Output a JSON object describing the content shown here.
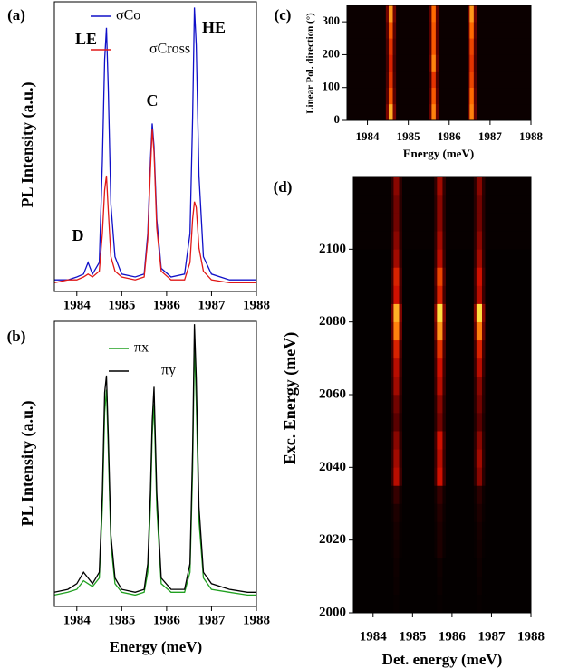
{
  "chart_data": [
    {
      "type": "line",
      "panel": "(a)",
      "ylabel": "PL Intensity (a.u.)",
      "annotations": [
        "LE",
        "C",
        "HE",
        "D"
      ],
      "x": [
        1983.5,
        1983.8,
        1984.0,
        1984.15,
        1984.25,
        1984.35,
        1984.5,
        1984.57,
        1984.62,
        1984.66,
        1984.7,
        1984.76,
        1984.85,
        1985.0,
        1985.3,
        1985.5,
        1985.58,
        1985.64,
        1985.68,
        1985.72,
        1985.78,
        1985.88,
        1986.1,
        1986.4,
        1986.52,
        1986.58,
        1986.62,
        1986.66,
        1986.72,
        1986.82,
        1987.0,
        1987.4,
        1987.8,
        1988.0
      ],
      "series": [
        {
          "name": "σCo",
          "color": "#1010c8",
          "values": [
            4,
            4,
            5,
            6,
            10,
            6,
            10,
            45,
            80,
            91,
            70,
            30,
            12,
            6,
            5,
            6,
            20,
            45,
            58,
            50,
            25,
            8,
            5,
            6,
            20,
            60,
            98,
            85,
            40,
            12,
            6,
            4,
            4,
            4
          ]
        },
        {
          "name": "σCross",
          "color": "#e01818",
          "values": [
            3,
            4,
            4,
            5,
            6,
            5,
            7,
            20,
            35,
            40,
            28,
            12,
            7,
            5,
            4,
            5,
            18,
            42,
            56,
            48,
            22,
            7,
            4,
            4,
            10,
            25,
            31,
            29,
            15,
            7,
            4,
            3,
            3,
            3
          ]
        }
      ],
      "xlim": [
        1983.5,
        1988
      ],
      "xticks": [
        1984,
        1985,
        1986,
        1987,
        1988
      ],
      "ylim": [
        0,
        100
      ]
    },
    {
      "type": "line",
      "panel": "(b)",
      "ylabel": "PL Intensity (a.u.)",
      "xlabel": "Energy (meV)",
      "x": [
        1983.5,
        1983.8,
        1984.0,
        1984.15,
        1984.25,
        1984.35,
        1984.5,
        1984.57,
        1984.62,
        1984.66,
        1984.7,
        1984.76,
        1984.85,
        1985.0,
        1985.3,
        1985.5,
        1985.58,
        1985.64,
        1985.68,
        1985.72,
        1985.78,
        1985.88,
        1986.1,
        1986.4,
        1986.52,
        1986.58,
        1986.62,
        1986.66,
        1986.72,
        1986.82,
        1987.0,
        1987.4,
        1987.8,
        1988.0
      ],
      "series": [
        {
          "name": "πx",
          "color": "#20a020",
          "values": [
            4,
            5,
            6,
            9,
            8,
            7,
            10,
            35,
            68,
            76,
            55,
            22,
            8,
            5,
            4,
            5,
            12,
            35,
            60,
            71,
            35,
            8,
            5,
            5,
            12,
            48,
            92,
            72,
            30,
            10,
            6,
            5,
            4,
            4
          ]
        },
        {
          "name": "πy",
          "color": "#000000",
          "values": [
            5,
            6,
            8,
            12,
            10,
            8,
            12,
            40,
            75,
            81,
            60,
            25,
            10,
            6,
            5,
            6,
            15,
            40,
            65,
            77,
            40,
            10,
            6,
            6,
            15,
            55,
            99,
            80,
            35,
            12,
            8,
            6,
            5,
            5
          ]
        }
      ],
      "xlim": [
        1983.5,
        1988
      ],
      "xticks": [
        1984,
        1985,
        1986,
        1987,
        1988
      ],
      "ylim": [
        0,
        100
      ]
    },
    {
      "type": "heatmap",
      "panel": "(c)",
      "ylabel": "Linear Pol. direction (°)",
      "xlabel": "Energy (meV)",
      "xbins": [
        1983.5,
        1984.45,
        1984.52,
        1984.62,
        1984.7,
        1985.5,
        1985.57,
        1985.67,
        1985.75,
        1986.45,
        1986.5,
        1986.6,
        1986.68,
        1988
      ],
      "ybins": [
        0,
        50,
        100,
        150,
        200,
        250,
        300,
        350
      ],
      "z": [
        [
          0.03,
          0.32,
          0.9,
          0.32,
          0.03,
          0.28,
          0.8,
          0.28,
          0.03,
          0.28,
          0.8,
          0.28,
          0.03
        ],
        [
          0.03,
          0.25,
          0.7,
          0.25,
          0.03,
          0.25,
          0.7,
          0.25,
          0.03,
          0.26,
          0.75,
          0.26,
          0.03
        ],
        [
          0.03,
          0.21,
          0.6,
          0.21,
          0.03,
          0.21,
          0.6,
          0.21,
          0.03,
          0.23,
          0.65,
          0.23,
          0.03
        ],
        [
          0.03,
          0.19,
          0.55,
          0.19,
          0.03,
          0.28,
          0.8,
          0.28,
          0.03,
          0.21,
          0.6,
          0.21,
          0.03
        ],
        [
          0.03,
          0.21,
          0.6,
          0.21,
          0.03,
          0.25,
          0.7,
          0.25,
          0.03,
          0.23,
          0.65,
          0.23,
          0.03
        ],
        [
          0.03,
          0.25,
          0.7,
          0.25,
          0.03,
          0.25,
          0.7,
          0.25,
          0.03,
          0.26,
          0.75,
          0.26,
          0.03
        ],
        [
          0.03,
          0.3,
          0.85,
          0.3,
          0.03,
          0.26,
          0.75,
          0.26,
          0.03,
          0.3,
          0.85,
          0.3,
          0.03
        ]
      ],
      "colormap": [
        "#000000",
        "#5a0000",
        "#d01000",
        "#ff6a00",
        "#ffe040"
      ],
      "xlim": [
        1983.5,
        1988
      ],
      "xticks": [
        1984,
        1985,
        1986,
        1987,
        1988
      ],
      "ylim": [
        0,
        350
      ],
      "yticks": [
        0,
        100,
        200,
        300
      ]
    },
    {
      "type": "heatmap",
      "panel": "(d)",
      "ylabel": "Exc. Energy (meV)",
      "xlabel": "Det. energy (meV)",
      "xbins": [
        1983.5,
        1984.45,
        1984.52,
        1984.66,
        1984.74,
        1985.55,
        1985.62,
        1985.76,
        1985.84,
        1986.55,
        1986.62,
        1986.76,
        1986.84,
        1988
      ],
      "ybins": [
        2000,
        2005,
        2010,
        2015,
        2020,
        2025,
        2030,
        2035,
        2040,
        2045,
        2050,
        2055,
        2060,
        2065,
        2070,
        2075,
        2080,
        2085,
        2090,
        2095,
        2100,
        2105,
        2110,
        2115,
        2120
      ],
      "z": [
        [
          0.01,
          0.01,
          0.02,
          0.01,
          0.01,
          0.01,
          0.02,
          0.01,
          0.01,
          0.01,
          0.02,
          0.01,
          0.01
        ],
        [
          0.01,
          0.01,
          0.03,
          0.01,
          0.01,
          0.01,
          0.03,
          0.01,
          0.01,
          0.01,
          0.03,
          0.01,
          0.01
        ],
        [
          0.01,
          0.01,
          0.04,
          0.01,
          0.01,
          0.01,
          0.04,
          0.01,
          0.01,
          0.01,
          0.04,
          0.01,
          0.01
        ],
        [
          0.01,
          0.02,
          0.05,
          0.02,
          0.01,
          0.03,
          0.08,
          0.03,
          0.01,
          0.02,
          0.05,
          0.02,
          0.01
        ],
        [
          0.01,
          0.02,
          0.06,
          0.02,
          0.01,
          0.03,
          0.08,
          0.03,
          0.01,
          0.02,
          0.06,
          0.02,
          0.01
        ],
        [
          0.01,
          0.03,
          0.08,
          0.03,
          0.01,
          0.04,
          0.1,
          0.04,
          0.01,
          0.03,
          0.08,
          0.03,
          0.01
        ],
        [
          0.01,
          0.05,
          0.15,
          0.05,
          0.01,
          0.05,
          0.15,
          0.05,
          0.01,
          0.04,
          0.12,
          0.04,
          0.01
        ],
        [
          0.01,
          0.16,
          0.45,
          0.16,
          0.01,
          0.18,
          0.5,
          0.18,
          0.01,
          0.12,
          0.35,
          0.12,
          0.01
        ],
        [
          0.01,
          0.14,
          0.4,
          0.14,
          0.01,
          0.16,
          0.45,
          0.16,
          0.01,
          0.14,
          0.4,
          0.14,
          0.01
        ],
        [
          0.01,
          0.12,
          0.35,
          0.12,
          0.01,
          0.18,
          0.5,
          0.18,
          0.01,
          0.12,
          0.35,
          0.12,
          0.01
        ],
        [
          0.01,
          0.09,
          0.25,
          0.09,
          0.01,
          0.11,
          0.3,
          0.11,
          0.01,
          0.09,
          0.25,
          0.09,
          0.01
        ],
        [
          0.01,
          0.11,
          0.3,
          0.11,
          0.01,
          0.12,
          0.35,
          0.12,
          0.01,
          0.11,
          0.3,
          0.11,
          0.01
        ],
        [
          0.01,
          0.14,
          0.4,
          0.14,
          0.01,
          0.16,
          0.45,
          0.16,
          0.01,
          0.12,
          0.35,
          0.12,
          0.01
        ],
        [
          0.01,
          0.16,
          0.45,
          0.16,
          0.01,
          0.18,
          0.5,
          0.18,
          0.01,
          0.16,
          0.45,
          0.16,
          0.01
        ],
        [
          0.01,
          0.19,
          0.55,
          0.19,
          0.01,
          0.21,
          0.6,
          0.21,
          0.01,
          0.19,
          0.55,
          0.19,
          0.01
        ],
        [
          0.01,
          0.28,
          0.8,
          0.28,
          0.01,
          0.3,
          0.85,
          0.3,
          0.01,
          0.28,
          0.8,
          0.28,
          0.01
        ],
        [
          0.01,
          0.32,
          0.9,
          0.32,
          0.01,
          0.35,
          1,
          0.35,
          0.01,
          0.35,
          1,
          0.35,
          0.01
        ],
        [
          0.01,
          0.18,
          0.5,
          0.18,
          0.01,
          0.19,
          0.55,
          0.19,
          0.01,
          0.16,
          0.45,
          0.16,
          0.01
        ],
        [
          0.01,
          0.19,
          0.55,
          0.19,
          0.01,
          0.23,
          0.65,
          0.23,
          0.01,
          0.18,
          0.5,
          0.18,
          0.01
        ],
        [
          0.01,
          0.14,
          0.4,
          0.14,
          0.01,
          0.16,
          0.45,
          0.16,
          0.01,
          0.14,
          0.4,
          0.14,
          0.01
        ],
        [
          0.02,
          0.12,
          0.35,
          0.12,
          0.02,
          0.14,
          0.4,
          0.14,
          0.02,
          0.12,
          0.35,
          0.12,
          0.02
        ],
        [
          0.02,
          0.11,
          0.3,
          0.11,
          0.02,
          0.12,
          0.35,
          0.12,
          0.02,
          0.11,
          0.3,
          0.11,
          0.02
        ],
        [
          0.02,
          0.11,
          0.3,
          0.11,
          0.02,
          0.12,
          0.35,
          0.12,
          0.02,
          0.11,
          0.3,
          0.11,
          0.02
        ],
        [
          0.02,
          0.12,
          0.35,
          0.12,
          0.02,
          0.14,
          0.4,
          0.14,
          0.02,
          0.12,
          0.35,
          0.12,
          0.02
        ]
      ],
      "colormap": [
        "#000000",
        "#5a0000",
        "#d01000",
        "#ff6a00",
        "#ffe040"
      ],
      "xlim": [
        1983.5,
        1988
      ],
      "xticks": [
        1984,
        1985,
        1986,
        1987,
        1988
      ],
      "ylim": [
        2000,
        2120
      ],
      "yticks": [
        2000,
        2020,
        2040,
        2060,
        2080,
        2100
      ]
    }
  ]
}
